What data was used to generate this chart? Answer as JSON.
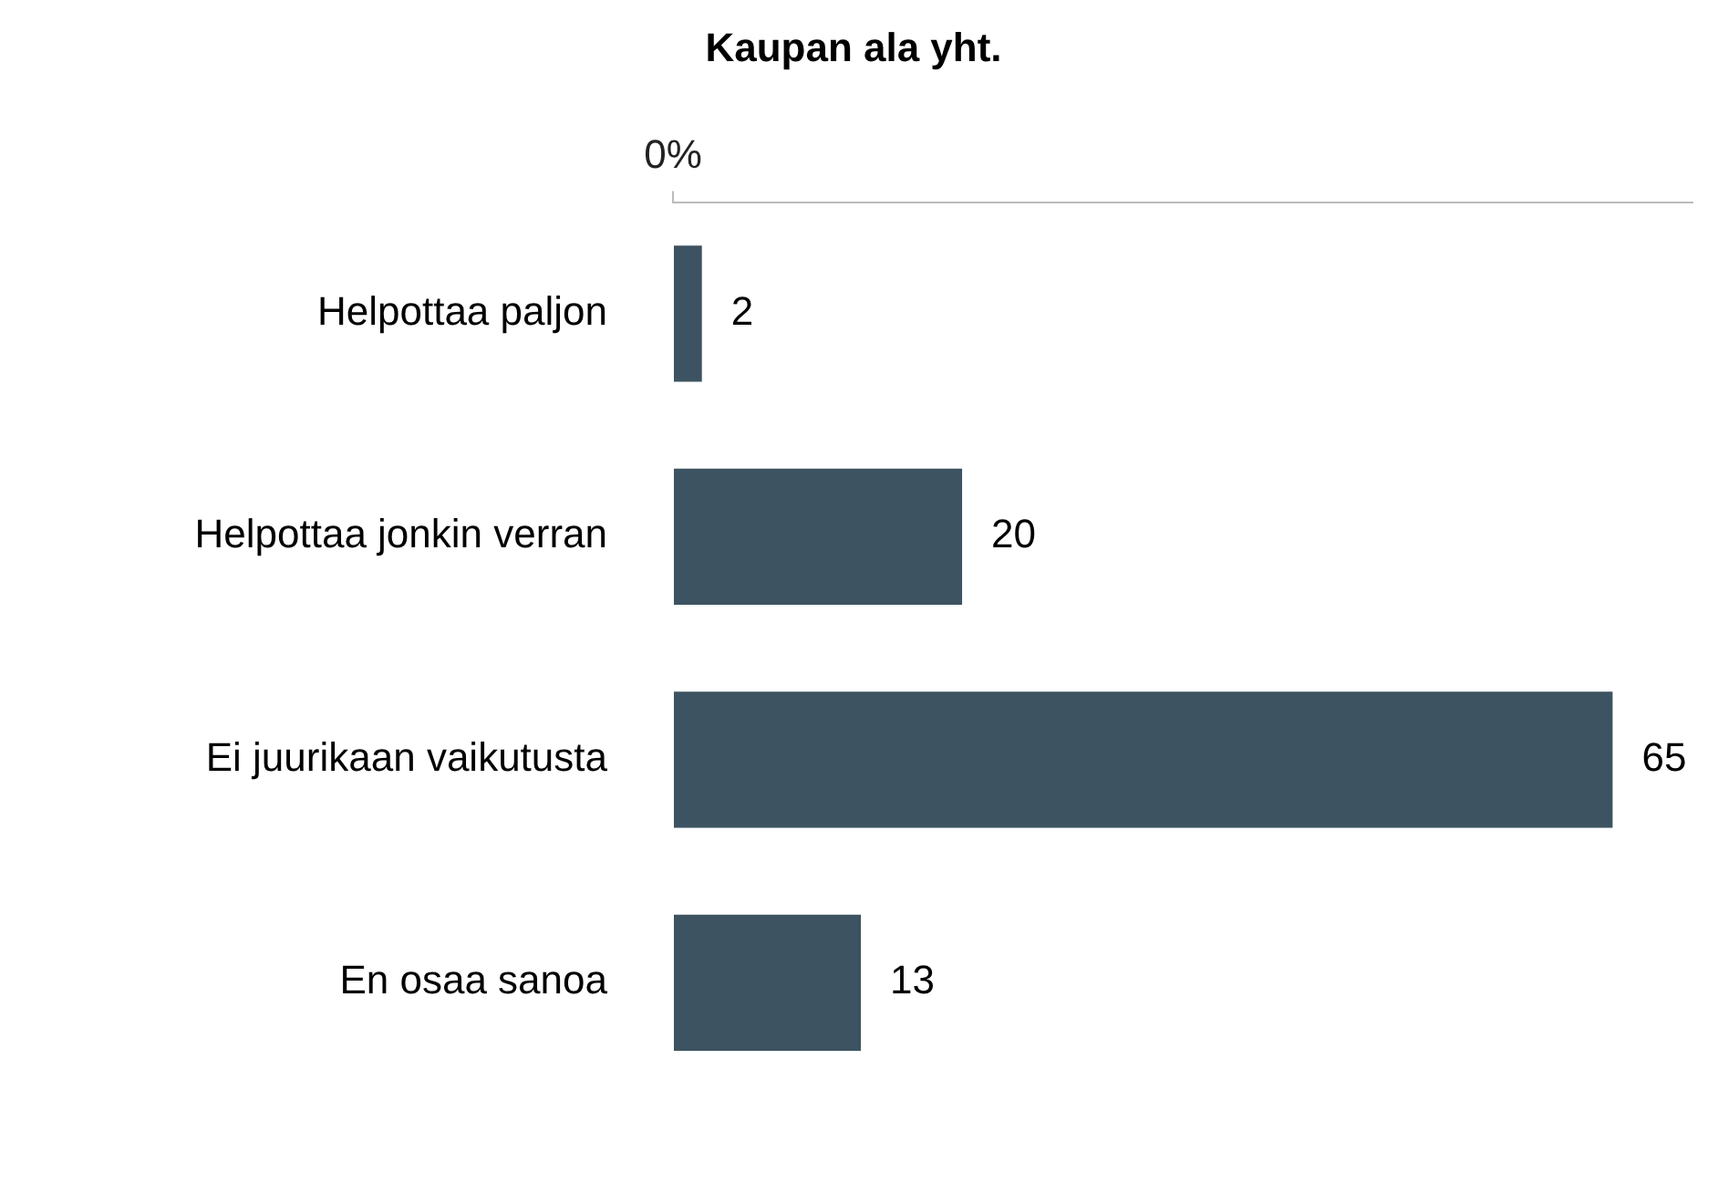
{
  "chart_data": {
    "type": "bar",
    "orientation": "horizontal",
    "title": "Kaupan ala yht.",
    "categories": [
      "Helpottaa paljon",
      "Helpottaa jonkin verran",
      "Ei juurikaan vaikutusta",
      "En osaa sanoa"
    ],
    "values": [
      2,
      20,
      65,
      13
    ],
    "color": "#3d5361",
    "annotations": [
      "0%"
    ],
    "data_labels": true,
    "grid": false,
    "legend": false
  }
}
